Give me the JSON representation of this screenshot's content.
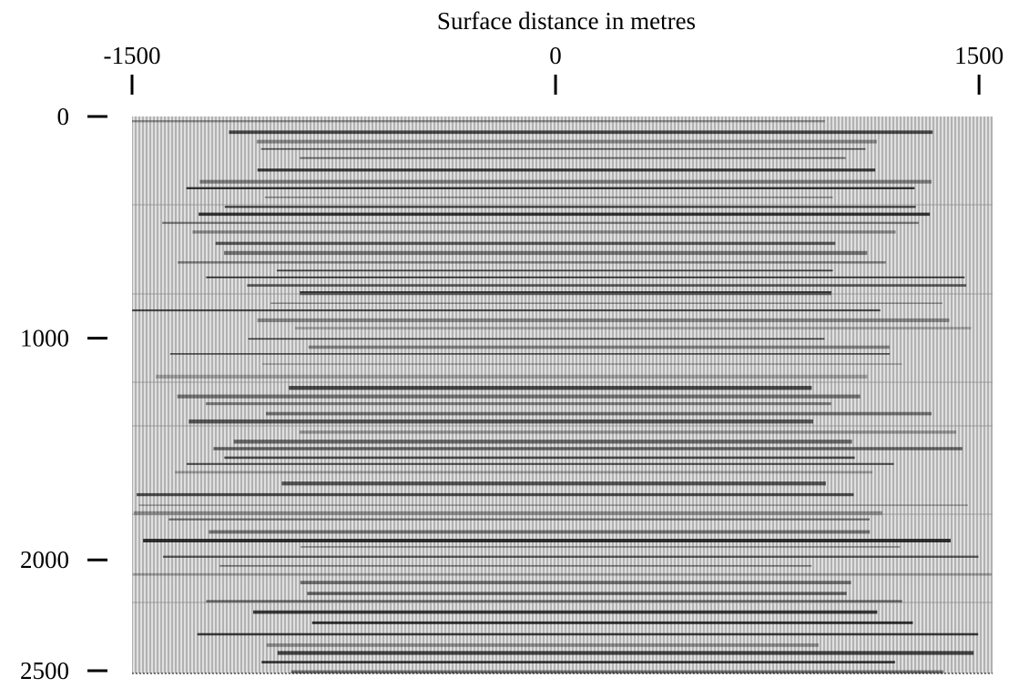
{
  "chart_data": {
    "type": "seismic",
    "title": "Surface distance in metres",
    "xlim": [
      -1500,
      1548
    ],
    "xticks": [
      -1500,
      0,
      1500
    ],
    "ylim": [
      0,
      2500
    ],
    "yticks": [
      0,
      1000,
      2000,
      2500
    ],
    "y_inverted": true
  }
}
